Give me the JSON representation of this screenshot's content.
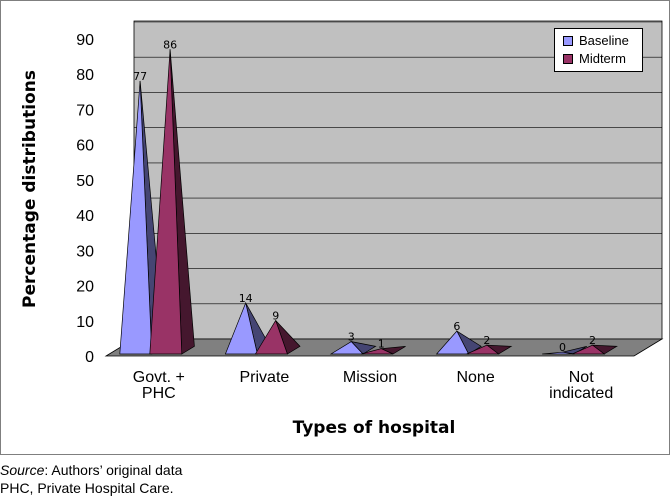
{
  "chart_data": {
    "type": "bar",
    "ylabel": "Percentage distributions",
    "xlabel": "Types of hospital",
    "ylim": [
      0,
      90
    ],
    "yticks": [
      0,
      10,
      20,
      30,
      40,
      50,
      60,
      70,
      80,
      90
    ],
    "categories": [
      "Govt. + PHC",
      "Private",
      "Mission",
      "None",
      "Not indicated"
    ],
    "series": [
      {
        "name": "Baseline",
        "values": [
          77,
          14,
          3,
          6,
          0
        ],
        "color": "#9999ff"
      },
      {
        "name": "Midterm",
        "values": [
          86,
          9,
          1,
          2,
          2
        ],
        "color": "#993366"
      }
    ],
    "legend_position": "top-right",
    "wall_color": "#c0c0c0",
    "floor_color": "#808080"
  },
  "caption": {
    "source_label": "Source",
    "source_text": ": Authors’ original data",
    "note": "PHC, Private Hospital Care."
  }
}
